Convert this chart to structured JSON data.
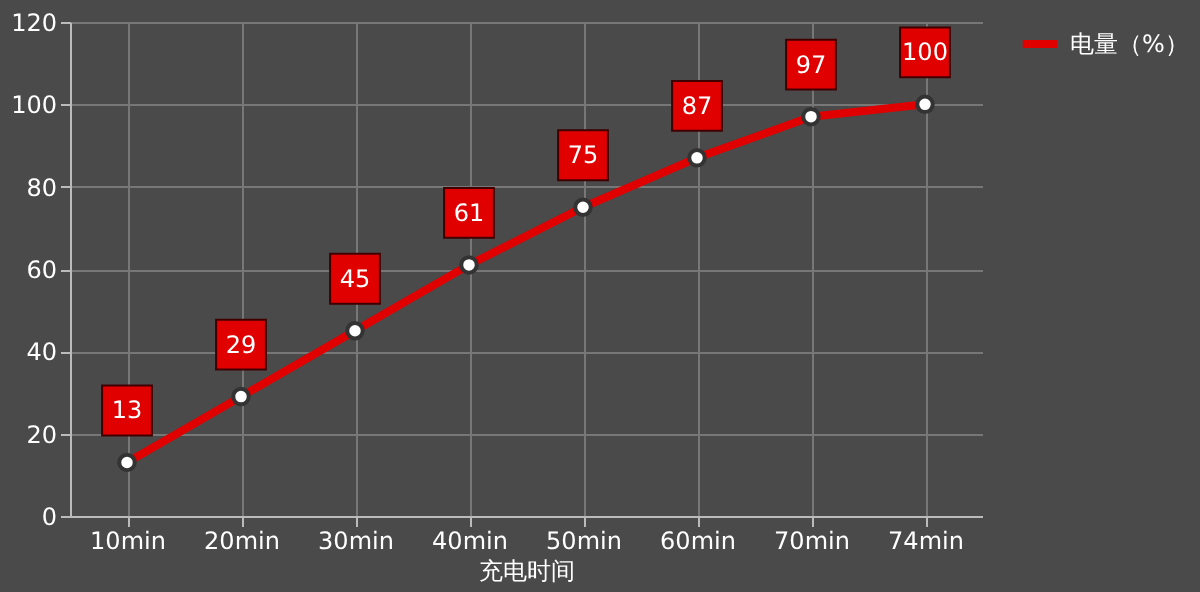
{
  "chart_data": {
    "type": "line",
    "xlabel": "充电时间",
    "categories": [
      "10min",
      "20min",
      "30min",
      "40min",
      "50min",
      "60min",
      "70min",
      "74min"
    ],
    "series": [
      {
        "name": "电量（%）",
        "color": "#e00000",
        "values": [
          13,
          29,
          45,
          61,
          75,
          87,
          97,
          100
        ]
      }
    ],
    "ylim": [
      0,
      120
    ],
    "yticks": [
      0,
      20,
      40,
      60,
      80,
      100,
      120
    ],
    "grid": true,
    "legend": "right",
    "marker": "circle",
    "line_style": "solid",
    "data_labels": true
  }
}
